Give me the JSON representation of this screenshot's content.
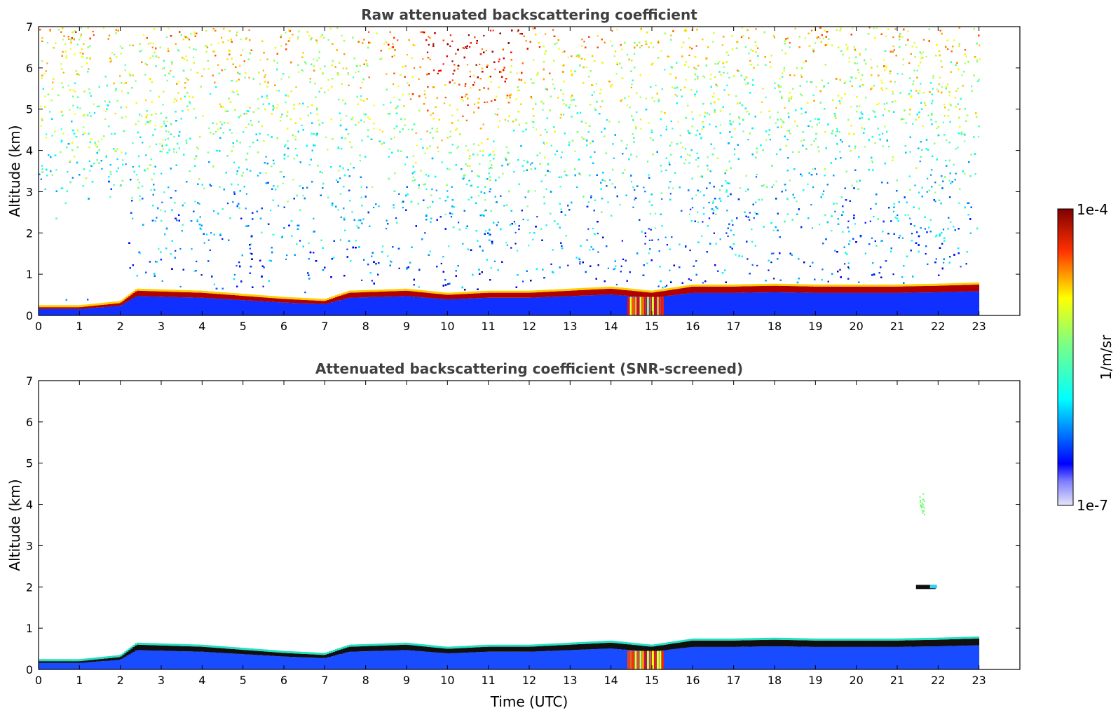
{
  "chart_data": [
    {
      "type": "heatmap",
      "title": "Raw attenuated backscattering coefficient",
      "xlabel": "",
      "ylabel": "Altitude (km)",
      "xlim": [
        0,
        24
      ],
      "ylim": [
        0,
        7
      ],
      "x_ticks": [
        "0",
        "1",
        "2",
        "3",
        "4",
        "5",
        "6",
        "7",
        "8",
        "9",
        "10",
        "11",
        "12",
        "13",
        "14",
        "15",
        "16",
        "17",
        "18",
        "19",
        "20",
        "21",
        "22",
        "23"
      ],
      "y_ticks": [
        "0",
        "1",
        "2",
        "3",
        "4",
        "5",
        "6",
        "7"
      ],
      "data_extent_x": [
        0,
        23
      ],
      "boundary_layer_top_km": [
        [
          0,
          0.2
        ],
        [
          1,
          0.2
        ],
        [
          2,
          0.3
        ],
        [
          2.4,
          0.6
        ],
        [
          4,
          0.55
        ],
        [
          6,
          0.4
        ],
        [
          7,
          0.35
        ],
        [
          7.6,
          0.55
        ],
        [
          9,
          0.6
        ],
        [
          10,
          0.5
        ],
        [
          11,
          0.55
        ],
        [
          12,
          0.55
        ],
        [
          13,
          0.6
        ],
        [
          14,
          0.65
        ],
        [
          15,
          0.55
        ],
        [
          16,
          0.7
        ],
        [
          17,
          0.7
        ],
        [
          18,
          0.72
        ],
        [
          19,
          0.7
        ],
        [
          20,
          0.7
        ],
        [
          21,
          0.7
        ],
        [
          22,
          0.72
        ],
        [
          23,
          0.75
        ]
      ],
      "colormap": "jet",
      "grid": false
    },
    {
      "type": "heatmap",
      "title": "Attenuated backscattering coefficient (SNR-screened)",
      "xlabel": "Time (UTC)",
      "ylabel": "Altitude (km)",
      "xlim": [
        0,
        24
      ],
      "ylim": [
        0,
        7
      ],
      "x_ticks": [
        "0",
        "1",
        "2",
        "3",
        "4",
        "5",
        "6",
        "7",
        "8",
        "9",
        "10",
        "11",
        "12",
        "13",
        "14",
        "15",
        "16",
        "17",
        "18",
        "19",
        "20",
        "21",
        "22",
        "23"
      ],
      "y_ticks": [
        "0",
        "1",
        "2",
        "3",
        "4",
        "5",
        "6",
        "7"
      ],
      "data_extent_x": [
        0,
        23
      ],
      "boundary_layer_top_km": [
        [
          0,
          0.2
        ],
        [
          1,
          0.2
        ],
        [
          2,
          0.3
        ],
        [
          2.4,
          0.6
        ],
        [
          4,
          0.55
        ],
        [
          6,
          0.4
        ],
        [
          7,
          0.35
        ],
        [
          7.6,
          0.55
        ],
        [
          9,
          0.6
        ],
        [
          10,
          0.5
        ],
        [
          11,
          0.55
        ],
        [
          12,
          0.55
        ],
        [
          13,
          0.6
        ],
        [
          14,
          0.65
        ],
        [
          15,
          0.55
        ],
        [
          16,
          0.7
        ],
        [
          17,
          0.7
        ],
        [
          18,
          0.72
        ],
        [
          19,
          0.7
        ],
        [
          20,
          0.7
        ],
        [
          21,
          0.7
        ],
        [
          22,
          0.72
        ],
        [
          23,
          0.75
        ]
      ],
      "features": [
        {
          "x": 21.7,
          "y": 2.0
        },
        {
          "x": 21.6,
          "y": 4.0
        }
      ],
      "colormap": "jet",
      "grid": false
    }
  ],
  "colorbar": {
    "label": "1/m/sr",
    "max_label": "1e-4",
    "min_label": "1e-7",
    "scale": "log",
    "range": [
      1e-07,
      0.0001
    ]
  }
}
